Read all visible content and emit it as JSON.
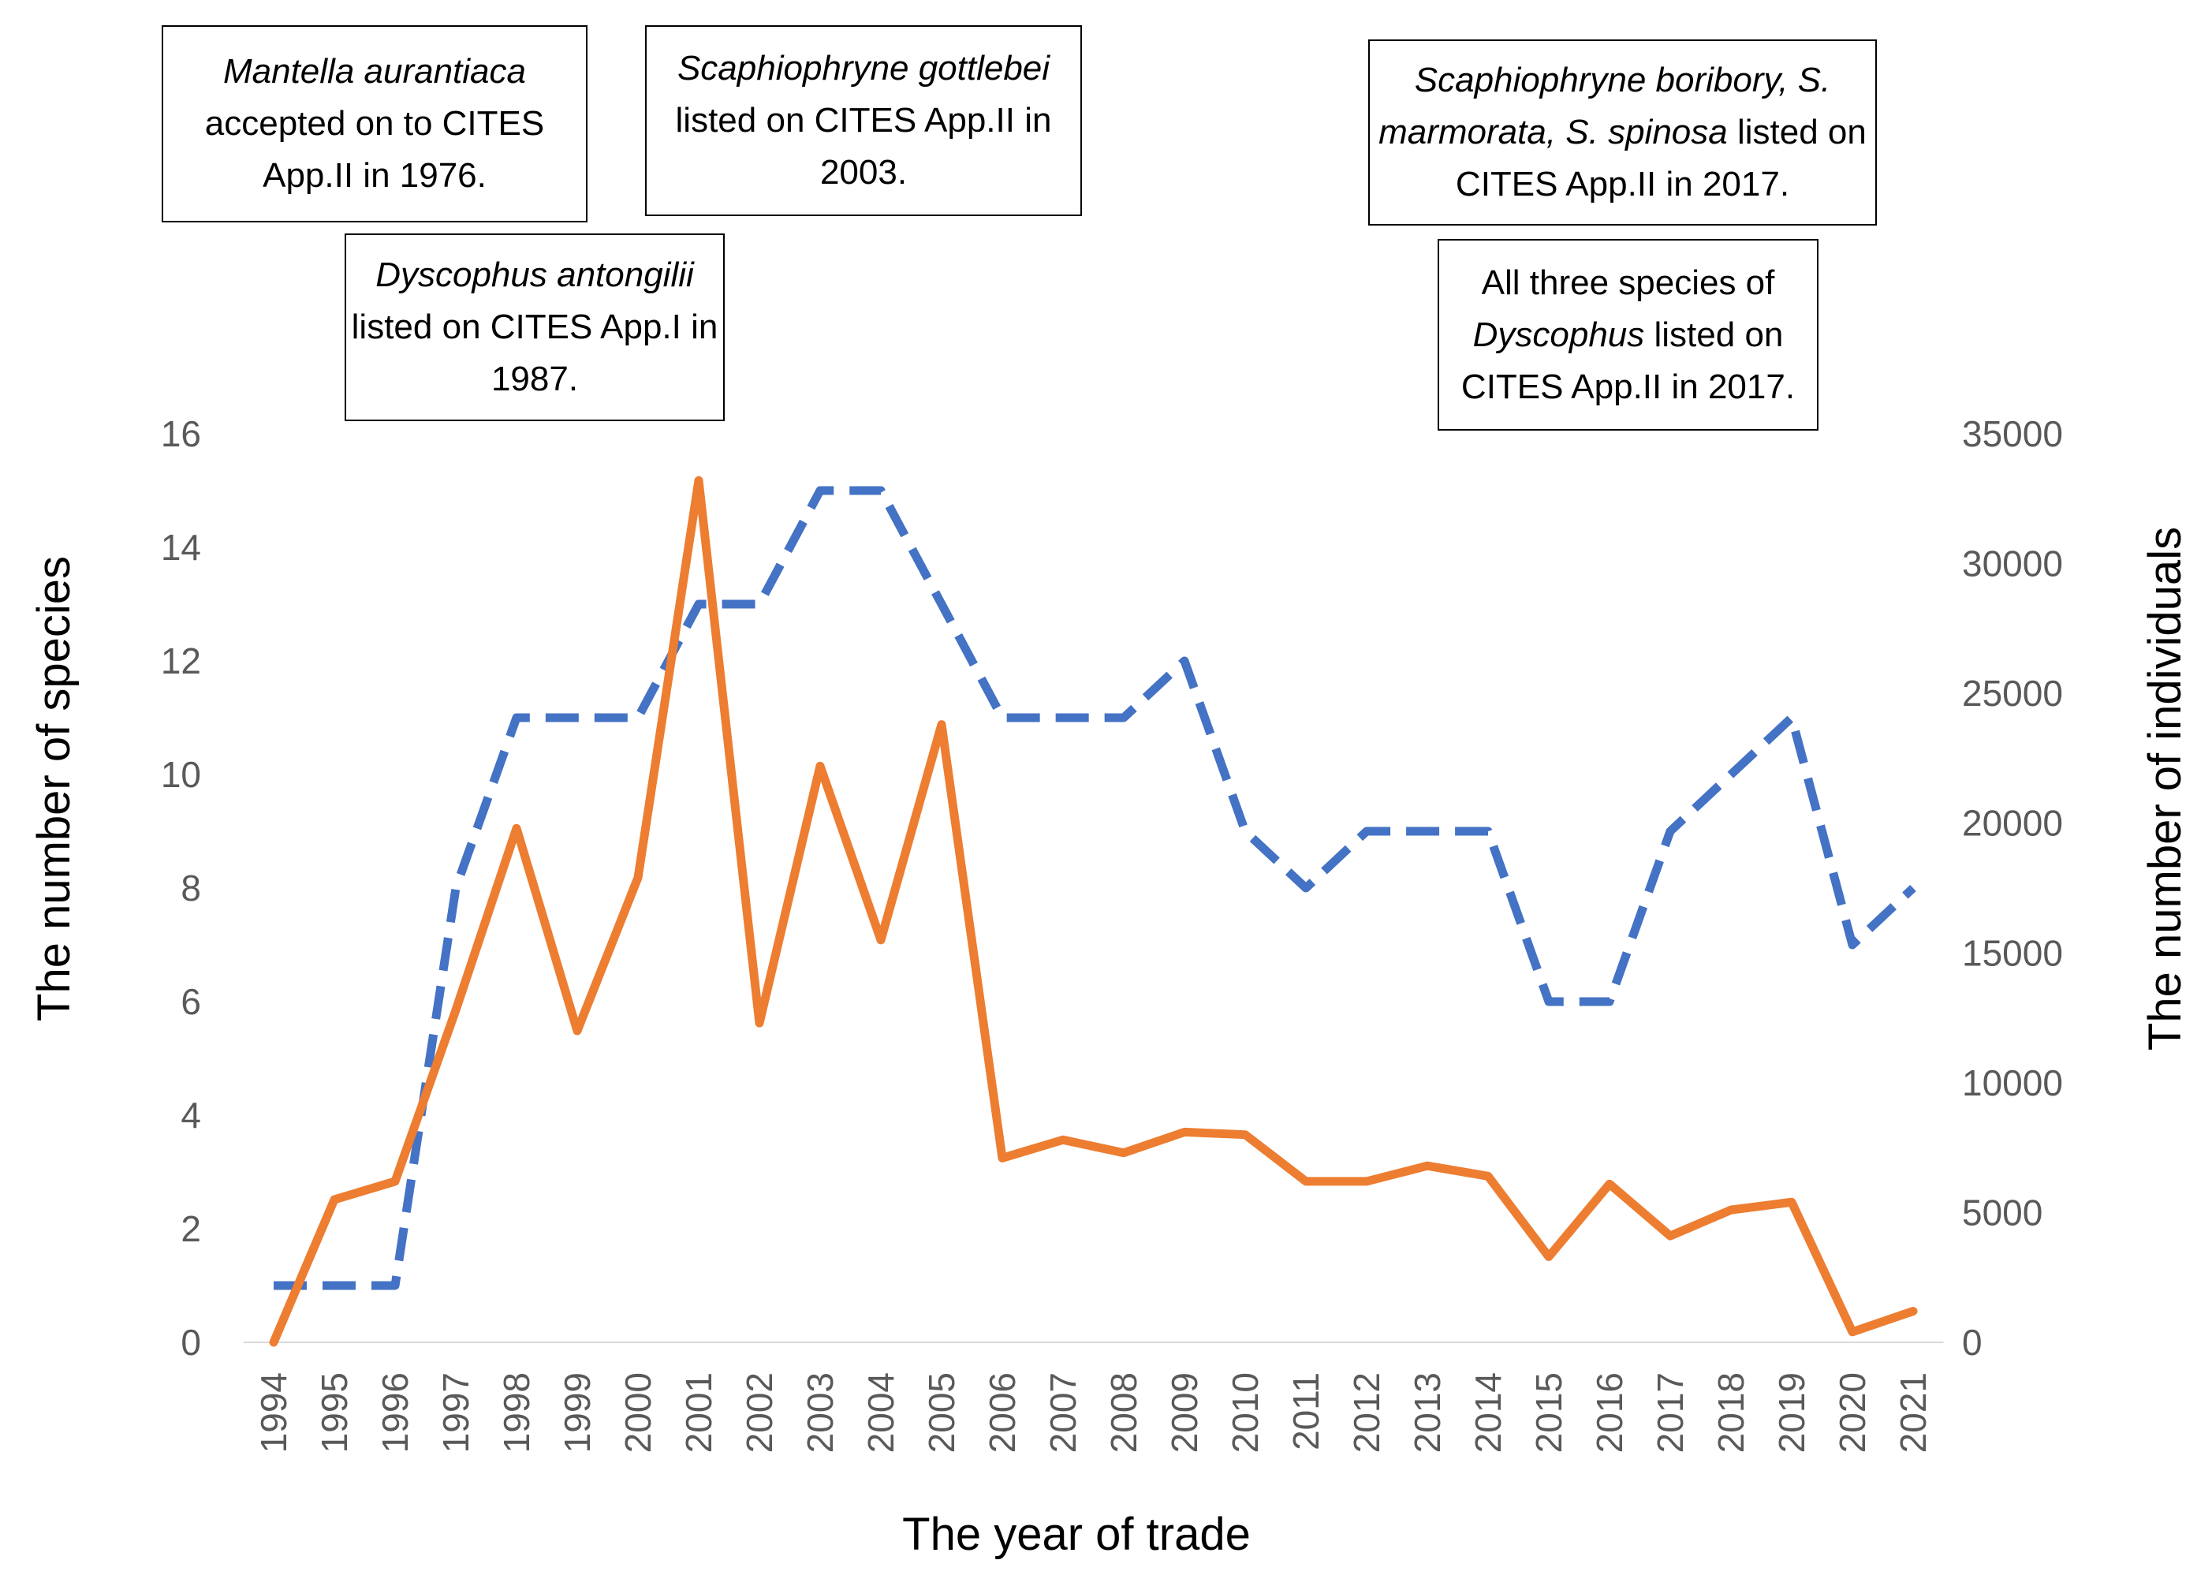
{
  "chart_data": {
    "type": "line",
    "xlabel": "The year of trade",
    "ylabel_left": "The number of species",
    "ylabel_right": "The number of individuals",
    "ylim_left": [
      0,
      16
    ],
    "ylim_right": [
      0,
      35000
    ],
    "yticks_left": [
      0,
      2,
      4,
      6,
      8,
      10,
      12,
      14,
      16
    ],
    "yticks_right": [
      0,
      5000,
      10000,
      15000,
      20000,
      25000,
      30000,
      35000
    ],
    "categories": [
      "1994",
      "1995",
      "1996",
      "1997",
      "1998",
      "1999",
      "2000",
      "2001",
      "2002",
      "2003",
      "2004",
      "2005",
      "2006",
      "2007",
      "2008",
      "2009",
      "2010",
      "2011",
      "2012",
      "2013",
      "2014",
      "2015",
      "2016",
      "2017",
      "2018",
      "2019",
      "2020",
      "2021"
    ],
    "series": [
      {
        "name": "The number of species",
        "axis": "left",
        "style": "dashed",
        "color": "#4472C4",
        "values": [
          1,
          1,
          1,
          8,
          11,
          11,
          11,
          13,
          13,
          15,
          15,
          13,
          11,
          11,
          11,
          12,
          9,
          8,
          9,
          9,
          9,
          6,
          6,
          9,
          10,
          11,
          7,
          8
        ]
      },
      {
        "name": "The number of individuals",
        "axis": "right",
        "style": "solid",
        "color": "#ED7D31",
        "values": [
          0,
          5500,
          6200,
          12800,
          19800,
          12000,
          17900,
          33200,
          12300,
          22200,
          15500,
          23800,
          7100,
          7800,
          7300,
          8100,
          8000,
          6200,
          6200,
          6800,
          6400,
          3300,
          6100,
          4100,
          5100,
          5400,
          400,
          1200
        ]
      }
    ]
  },
  "annotations": {
    "a1976": {
      "italic": "Mantella aurantiaca",
      "rest": " accepted on to CITES App.II in 1976."
    },
    "a1987": {
      "italic": "Dyscophus antongilii",
      "rest": " listed on CITES App.I in 1987."
    },
    "a2003": {
      "italic": "Scaphiophryne gottlebei",
      "rest": " listed on CITES App.II in 2003."
    },
    "a2017a": {
      "italic": "Scaphiophryne boribory, S. marmorata, S. spinosa",
      "rest": " listed on CITES App.II in 2017."
    },
    "a2017b": {
      "pre": "All three species of ",
      "italic": "Dyscophus",
      "rest": " listed on CITES App.II in 2017."
    }
  }
}
